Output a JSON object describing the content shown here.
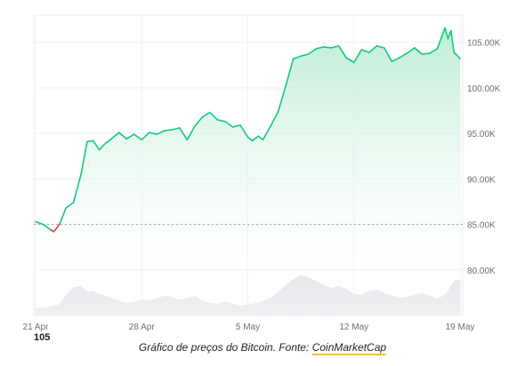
{
  "chart_data": {
    "type": "area",
    "title": "",
    "xlabel": "",
    "ylabel": "",
    "ylim": [
      75000,
      108000
    ],
    "y_ticks": [
      80000,
      85000,
      90000,
      95000,
      100000,
      105000
    ],
    "y_tick_labels": [
      "80.00K",
      "85.00K",
      "90.00K",
      "95.00K",
      "100.00K",
      "105.00K"
    ],
    "x_ticks": [
      0,
      7,
      14,
      21,
      28
    ],
    "x_tick_labels": [
      "21 Apr",
      "28 Apr",
      "5 May",
      "12 May",
      "19 May"
    ],
    "xlim": [
      0,
      28
    ],
    "reference_line": 85000,
    "grid": true,
    "legend": "none",
    "colors": {
      "up": "#16c784",
      "down": "#ea3943",
      "area_top": "#c9f2de",
      "volume": "#e2e4ea"
    },
    "series": [
      {
        "x": [
          0,
          0.5,
          1,
          1.2,
          1.4,
          1.6,
          2.0,
          2.5,
          3.0,
          3.4,
          3.8,
          4.2,
          4.6,
          5.0,
          5.5,
          6.0,
          6.5,
          7.0,
          7.5,
          8.0,
          8.5,
          9.0,
          9.5,
          10.0,
          10.5,
          11.0,
          11.5,
          12.0,
          12.5,
          13.0,
          13.5,
          14.0,
          14.3,
          14.7,
          15.0,
          15.5,
          16.0,
          16.5,
          17.0,
          17.5,
          18.0,
          18.5,
          19.0,
          19.5,
          20.0,
          20.5,
          21.0,
          21.5,
          22.0,
          22.5,
          23.0,
          23.5,
          24.0,
          24.5,
          25.0,
          25.5,
          26.0,
          26.5,
          27.0,
          27.2,
          27.4,
          27.6,
          27.8,
          28.0
        ],
        "y": [
          85300,
          85000,
          84400,
          84200,
          84600,
          85100,
          86800,
          87400,
          90500,
          94100,
          94200,
          93200,
          93900,
          94400,
          95100,
          94400,
          94900,
          94300,
          95100,
          94900,
          95300,
          95400,
          95600,
          94300,
          95800,
          96800,
          97300,
          96500,
          96300,
          95700,
          95900,
          94600,
          94200,
          94700,
          94300,
          95800,
          97400,
          100200,
          103200,
          103500,
          103700,
          104300,
          104500,
          104400,
          104600,
          103300,
          102800,
          104200,
          103900,
          104600,
          104400,
          102900,
          103300,
          103800,
          104400,
          103700,
          103800,
          104300,
          106600,
          105400,
          106300,
          103900,
          103600,
          103200
        ],
        "volume": [
          0.14,
          0.16,
          0.18,
          0.22,
          0.2,
          0.24,
          0.42,
          0.58,
          0.6,
          0.48,
          0.5,
          0.44,
          0.4,
          0.36,
          0.3,
          0.26,
          0.28,
          0.32,
          0.3,
          0.35,
          0.4,
          0.38,
          0.32,
          0.35,
          0.4,
          0.3,
          0.26,
          0.24,
          0.28,
          0.24,
          0.2,
          0.22,
          0.24,
          0.26,
          0.3,
          0.36,
          0.48,
          0.62,
          0.74,
          0.82,
          0.78,
          0.7,
          0.62,
          0.56,
          0.6,
          0.54,
          0.44,
          0.42,
          0.5,
          0.52,
          0.46,
          0.4,
          0.36,
          0.38,
          0.42,
          0.46,
          0.4,
          0.34,
          0.42,
          0.5,
          0.62,
          0.7,
          0.74,
          0.72
        ]
      }
    ]
  },
  "price_badge": "105",
  "caption": {
    "text": "Gráfico de preços do Bitcoin. Fonte: ",
    "link": "CoinMarketCap"
  }
}
